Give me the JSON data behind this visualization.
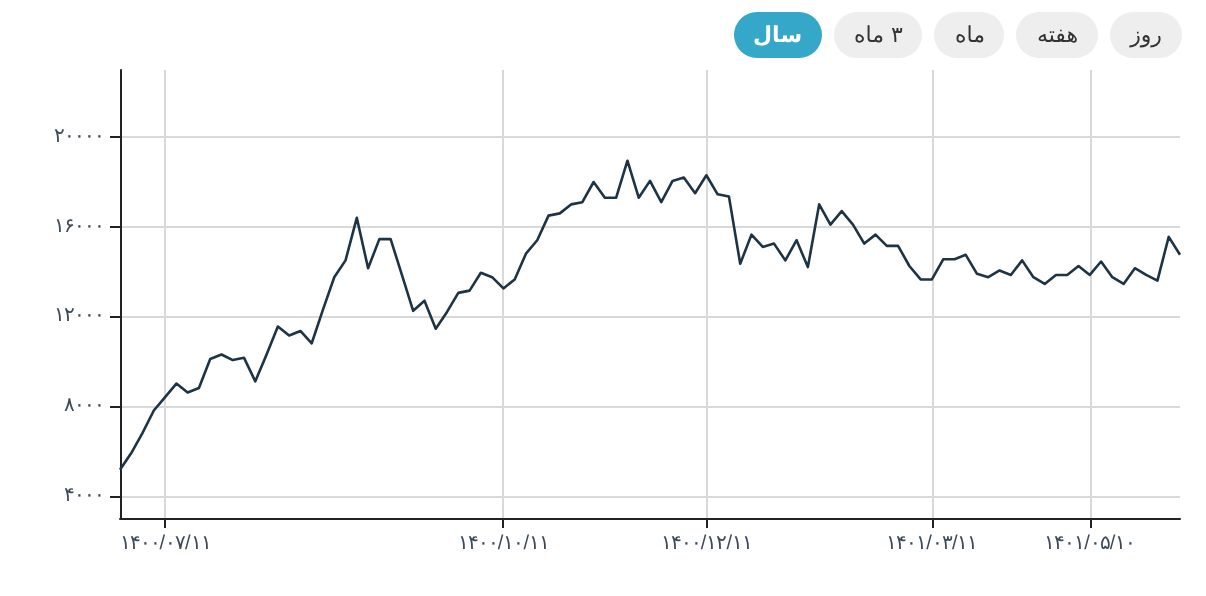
{
  "chart_data": {
    "type": "line",
    "categories": [
      null,
      null,
      null,
      null,
      "۱۴۰۰/۰۷/۱۱",
      null,
      null,
      null,
      null,
      null,
      null,
      null,
      null,
      null,
      null,
      null,
      null,
      null,
      null,
      null,
      null,
      null,
      null,
      null,
      null,
      null,
      null,
      null,
      null,
      null,
      null,
      null,
      null,
      null,
      "۱۴۰۰/۱۰/۱۱",
      null,
      null,
      null,
      null,
      null,
      null,
      null,
      null,
      null,
      null,
      null,
      null,
      null,
      null,
      null,
      null,
      null,
      "۱۴۰۰/۱۲/۱۱",
      null,
      null,
      null,
      null,
      null,
      null,
      null,
      null,
      null,
      null,
      null,
      null,
      null,
      null,
      null,
      null,
      null,
      null,
      null,
      "۱۴۰۱/۰۳/۱۱",
      null,
      null,
      null,
      null,
      null,
      null,
      null,
      null,
      null,
      null,
      null,
      null,
      null,
      "۱۴۰۱/۰۵/۱۰",
      null,
      null,
      null,
      null,
      null,
      null,
      null,
      null
    ],
    "series": [
      {
        "color": "#1d3346",
        "values": [
          5150,
          5900,
          6800,
          7800,
          8400,
          9000,
          8600,
          8800,
          10100,
          10300,
          10050,
          10150,
          9100,
          10300,
          11550,
          11150,
          11350,
          10800,
          12300,
          13750,
          14500,
          16400,
          14150,
          15450,
          15450,
          13850,
          12250,
          12700,
          11450,
          12200,
          13050,
          13150,
          13950,
          13750,
          13250,
          13650,
          14800,
          15400,
          16500,
          16600,
          17000,
          17100,
          18000,
          17300,
          17300,
          18950,
          17300,
          18050,
          17100,
          18050,
          18200,
          17500,
          18300,
          17450,
          17350,
          14350,
          15650,
          15100,
          15250,
          14500,
          15400,
          14200,
          17000,
          16100,
          16700,
          16100,
          15250,
          15650,
          15150,
          15150,
          14250,
          13650,
          13650,
          14550,
          14550,
          14750,
          13900,
          13750,
          14050,
          13850,
          14500,
          13750,
          13450,
          13850,
          13850,
          14250,
          13850,
          14450,
          13750,
          13450,
          14150,
          13850,
          13600,
          15550,
          14750
        ]
      }
    ],
    "ylim": [
      3000,
      23000
    ],
    "yticks": [
      {
        "value": 4000,
        "label": "۴۰۰۰"
      },
      {
        "value": 8000,
        "label": "۸۰۰۰"
      },
      {
        "value": 12000,
        "label": "۱۲۰۰۰"
      },
      {
        "value": 16000,
        "label": "۱۶۰۰۰"
      },
      {
        "value": 20000,
        "label": "۲۰۰۰۰"
      }
    ],
    "grid": true,
    "marker": "none",
    "line_style": "solid",
    "annotations": [
      "روز",
      "هفته",
      "ماه",
      "۳ ماه",
      "سال"
    ]
  }
}
